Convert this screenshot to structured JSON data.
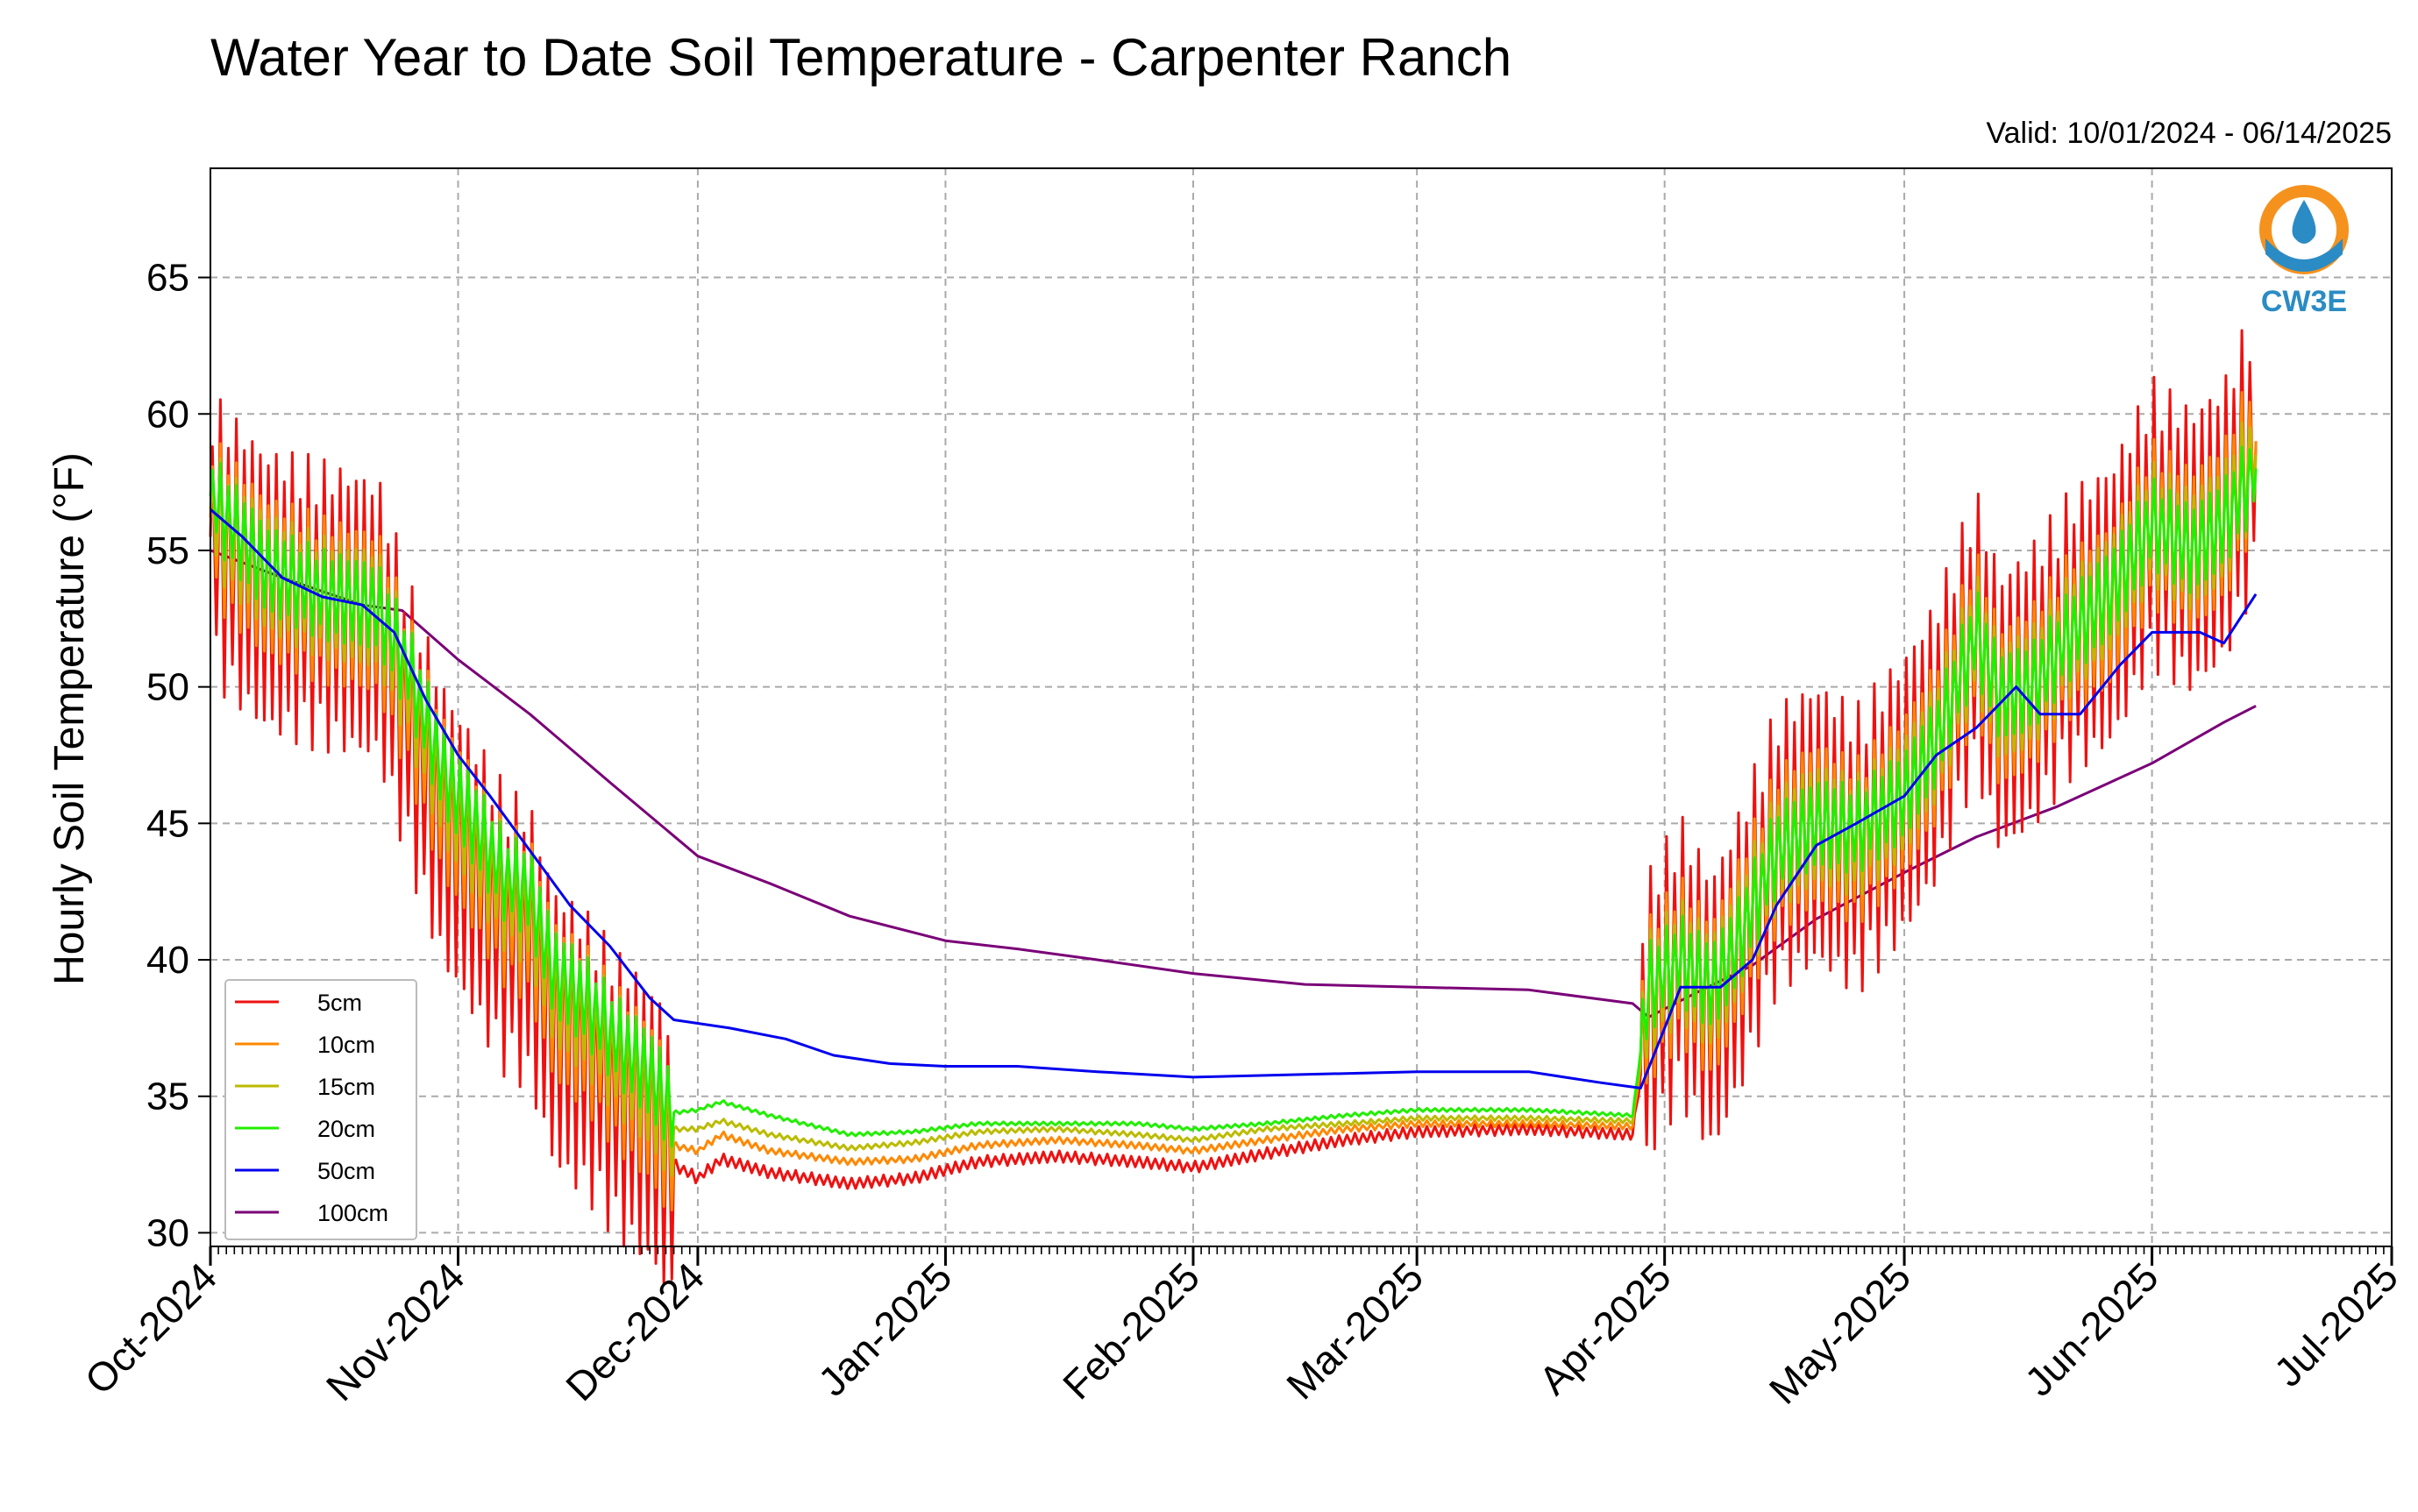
{
  "chart_data": {
    "type": "line",
    "title": "Water Year to Date Soil Temperature - Carpenter Ranch",
    "subtitle": "Valid: 10/01/2024 - 06/14/2025",
    "ylabel": "Hourly Soil Temperature (°F)",
    "xlabel": "",
    "xlim": [
      "2024-10-01",
      "2025-07-01"
    ],
    "ylim": [
      29.5,
      69
    ],
    "yticks": [
      30,
      35,
      40,
      45,
      50,
      55,
      60,
      65
    ],
    "xticks": [
      {
        "date": "2024-10-01",
        "label": "Oct-2024"
      },
      {
        "date": "2024-11-01",
        "label": "Nov-2024"
      },
      {
        "date": "2024-12-01",
        "label": "Dec-2024"
      },
      {
        "date": "2025-01-01",
        "label": "Jan-2025"
      },
      {
        "date": "2025-02-01",
        "label": "Feb-2025"
      },
      {
        "date": "2025-03-01",
        "label": "Mar-2025"
      },
      {
        "date": "2025-04-01",
        "label": "Apr-2025"
      },
      {
        "date": "2025-05-01",
        "label": "May-2025"
      },
      {
        "date": "2025-06-01",
        "label": "Jun-2025"
      },
      {
        "date": "2025-07-01",
        "label": "Jul-2025"
      }
    ],
    "grid": true,
    "legend_position": "lower-left",
    "logo_text": "CW3E",
    "series": [
      {
        "name": "5cm",
        "color": "#ee1111",
        "points": [
          [
            "2024-10-01",
            55.5
          ],
          [
            "2024-10-08",
            53.5
          ],
          [
            "2024-10-15",
            53
          ],
          [
            "2024-10-22",
            52.5
          ],
          [
            "2024-10-26",
            48.5
          ],
          [
            "2024-10-30",
            45
          ],
          [
            "2024-11-03",
            43
          ],
          [
            "2024-11-07",
            41
          ],
          [
            "2024-11-10",
            40.5
          ],
          [
            "2024-11-13",
            37.5
          ],
          [
            "2024-11-17",
            36.5
          ],
          [
            "2024-11-21",
            35
          ],
          [
            "2024-11-25",
            34
          ],
          [
            "2024-11-28",
            32.5
          ],
          [
            "2024-12-01",
            32
          ],
          [
            "2024-12-04",
            32.7
          ],
          [
            "2024-12-10",
            32.2
          ],
          [
            "2024-12-20",
            31.8
          ],
          [
            "2024-12-28",
            32
          ],
          [
            "2025-01-05",
            32.6
          ],
          [
            "2025-01-15",
            32.8
          ],
          [
            "2025-01-25",
            32.6
          ],
          [
            "2025-02-01",
            32.4
          ],
          [
            "2025-02-10",
            32.9
          ],
          [
            "2025-02-20",
            33.4
          ],
          [
            "2025-03-01",
            33.7
          ],
          [
            "2025-03-15",
            33.8
          ],
          [
            "2025-03-28",
            33.6
          ],
          [
            "2025-03-30",
            38
          ],
          [
            "2025-04-03",
            40
          ],
          [
            "2025-04-07",
            38
          ],
          [
            "2025-04-10",
            40
          ],
          [
            "2025-04-15",
            44
          ],
          [
            "2025-04-20",
            45
          ],
          [
            "2025-04-25",
            44
          ],
          [
            "2025-05-01",
            46
          ],
          [
            "2025-05-05",
            48
          ],
          [
            "2025-05-10",
            52
          ],
          [
            "2025-05-13",
            49
          ],
          [
            "2025-05-17",
            50
          ],
          [
            "2025-05-22",
            52
          ],
          [
            "2025-05-27",
            53
          ],
          [
            "2025-06-01",
            56
          ],
          [
            "2025-06-06",
            55
          ],
          [
            "2025-06-10",
            56
          ],
          [
            "2025-06-14",
            59
          ]
        ]
      },
      {
        "name": "10cm",
        "color": "#ff8800",
        "points": [
          [
            "2024-10-01",
            56.2
          ],
          [
            "2024-10-08",
            54
          ],
          [
            "2024-10-15",
            53.2
          ],
          [
            "2024-10-22",
            52.7
          ],
          [
            "2024-10-26",
            49.5
          ],
          [
            "2024-10-30",
            46
          ],
          [
            "2024-11-03",
            44
          ],
          [
            "2024-11-07",
            42
          ],
          [
            "2024-11-10",
            41.5
          ],
          [
            "2024-11-13",
            38.5
          ],
          [
            "2024-11-17",
            37.5
          ],
          [
            "2024-11-21",
            36
          ],
          [
            "2024-11-25",
            34.8
          ],
          [
            "2024-11-28",
            33.2
          ],
          [
            "2024-12-01",
            33
          ],
          [
            "2024-12-04",
            33.6
          ],
          [
            "2024-12-10",
            33
          ],
          [
            "2024-12-20",
            32.6
          ],
          [
            "2024-12-28",
            32.7
          ],
          [
            "2025-01-05",
            33.2
          ],
          [
            "2025-01-15",
            33.4
          ],
          [
            "2025-01-25",
            33.2
          ],
          [
            "2025-02-01",
            33
          ],
          [
            "2025-02-10",
            33.4
          ],
          [
            "2025-02-20",
            33.8
          ],
          [
            "2025-03-01",
            34
          ],
          [
            "2025-03-15",
            34
          ],
          [
            "2025-03-28",
            33.9
          ],
          [
            "2025-03-30",
            38.5
          ],
          [
            "2025-04-03",
            40
          ],
          [
            "2025-04-07",
            38.5
          ],
          [
            "2025-04-10",
            40.5
          ],
          [
            "2025-04-15",
            44
          ],
          [
            "2025-04-20",
            45
          ],
          [
            "2025-04-25",
            44.3
          ],
          [
            "2025-05-01",
            46
          ],
          [
            "2025-05-05",
            48
          ],
          [
            "2025-05-10",
            52
          ],
          [
            "2025-05-13",
            49.2
          ],
          [
            "2025-05-17",
            50
          ],
          [
            "2025-05-22",
            52
          ],
          [
            "2025-05-27",
            53
          ],
          [
            "2025-06-01",
            56
          ],
          [
            "2025-06-06",
            55
          ],
          [
            "2025-06-10",
            56
          ],
          [
            "2025-06-14",
            59
          ]
        ]
      },
      {
        "name": "15cm",
        "color": "#bbbb00",
        "points": [
          [
            "2024-10-01",
            56.5
          ],
          [
            "2024-10-08",
            54.2
          ],
          [
            "2024-10-15",
            53.3
          ],
          [
            "2024-10-22",
            52.8
          ],
          [
            "2024-10-26",
            50
          ],
          [
            "2024-10-30",
            46.5
          ],
          [
            "2024-11-03",
            44.5
          ],
          [
            "2024-11-07",
            42.5
          ],
          [
            "2024-11-10",
            42
          ],
          [
            "2024-11-13",
            39
          ],
          [
            "2024-11-17",
            38
          ],
          [
            "2024-11-21",
            36.5
          ],
          [
            "2024-11-25",
            35.3
          ],
          [
            "2024-11-28",
            33.8
          ],
          [
            "2024-12-01",
            33.8
          ],
          [
            "2024-12-04",
            34.1
          ],
          [
            "2024-12-10",
            33.6
          ],
          [
            "2024-12-20",
            33.1
          ],
          [
            "2024-12-28",
            33.3
          ],
          [
            "2025-01-05",
            33.7
          ],
          [
            "2025-01-15",
            33.8
          ],
          [
            "2025-01-25",
            33.6
          ],
          [
            "2025-02-01",
            33.4
          ],
          [
            "2025-02-10",
            33.8
          ],
          [
            "2025-02-20",
            34
          ],
          [
            "2025-03-01",
            34.2
          ],
          [
            "2025-03-15",
            34.2
          ],
          [
            "2025-03-28",
            34.1
          ],
          [
            "2025-03-30",
            38.8
          ],
          [
            "2025-04-03",
            40
          ],
          [
            "2025-04-07",
            38.8
          ],
          [
            "2025-04-10",
            40.5
          ],
          [
            "2025-04-15",
            44
          ],
          [
            "2025-04-20",
            45
          ],
          [
            "2025-04-25",
            44.5
          ],
          [
            "2025-05-01",
            46
          ],
          [
            "2025-05-05",
            48
          ],
          [
            "2025-05-10",
            52
          ],
          [
            "2025-05-13",
            49.4
          ],
          [
            "2025-05-17",
            50
          ],
          [
            "2025-05-22",
            52
          ],
          [
            "2025-05-27",
            53.5
          ],
          [
            "2025-06-01",
            56
          ],
          [
            "2025-06-06",
            55
          ],
          [
            "2025-06-10",
            56
          ],
          [
            "2025-06-14",
            58.5
          ]
        ]
      },
      {
        "name": "20cm",
        "color": "#22ee00",
        "points": [
          [
            "2024-10-01",
            57
          ],
          [
            "2024-10-08",
            54.3
          ],
          [
            "2024-10-15",
            53.4
          ],
          [
            "2024-10-22",
            52.9
          ],
          [
            "2024-10-26",
            50.5
          ],
          [
            "2024-10-30",
            47
          ],
          [
            "2024-11-03",
            45
          ],
          [
            "2024-11-07",
            43
          ],
          [
            "2024-11-10",
            42.5
          ],
          [
            "2024-11-13",
            39.5
          ],
          [
            "2024-11-17",
            38.5
          ],
          [
            "2024-11-21",
            37
          ],
          [
            "2024-11-25",
            35.8
          ],
          [
            "2024-11-28",
            34.4
          ],
          [
            "2024-12-01",
            34.5
          ],
          [
            "2024-12-04",
            34.8
          ],
          [
            "2024-12-10",
            34.3
          ],
          [
            "2024-12-20",
            33.6
          ],
          [
            "2024-12-28",
            33.7
          ],
          [
            "2025-01-05",
            34
          ],
          [
            "2025-01-15",
            34
          ],
          [
            "2025-01-25",
            34
          ],
          [
            "2025-02-01",
            33.8
          ],
          [
            "2025-02-10",
            34
          ],
          [
            "2025-02-20",
            34.3
          ],
          [
            "2025-03-01",
            34.5
          ],
          [
            "2025-03-15",
            34.5
          ],
          [
            "2025-03-28",
            34.3
          ],
          [
            "2025-03-30",
            39
          ],
          [
            "2025-04-03",
            40
          ],
          [
            "2025-04-07",
            39
          ],
          [
            "2025-04-10",
            40.5
          ],
          [
            "2025-04-15",
            44
          ],
          [
            "2025-04-20",
            45
          ],
          [
            "2025-04-25",
            44.8
          ],
          [
            "2025-05-01",
            46
          ],
          [
            "2025-05-05",
            48
          ],
          [
            "2025-05-10",
            52
          ],
          [
            "2025-05-13",
            49.6
          ],
          [
            "2025-05-17",
            50
          ],
          [
            "2025-05-22",
            52
          ],
          [
            "2025-05-27",
            53.5
          ],
          [
            "2025-06-01",
            56
          ],
          [
            "2025-06-06",
            55
          ],
          [
            "2025-06-10",
            56
          ],
          [
            "2025-06-14",
            58
          ]
        ]
      },
      {
        "name": "50cm",
        "color": "#0000ee",
        "points": [
          [
            "2024-10-01",
            56.5
          ],
          [
            "2024-10-05",
            55.5
          ],
          [
            "2024-10-10",
            54
          ],
          [
            "2024-10-15",
            53.3
          ],
          [
            "2024-10-20",
            53
          ],
          [
            "2024-10-24",
            52
          ],
          [
            "2024-10-28",
            49.5
          ],
          [
            "2024-11-01",
            47.5
          ],
          [
            "2024-11-05",
            46
          ],
          [
            "2024-11-10",
            44
          ],
          [
            "2024-11-15",
            42
          ],
          [
            "2024-11-20",
            40.5
          ],
          [
            "2024-11-25",
            38.6
          ],
          [
            "2024-11-28",
            37.8
          ],
          [
            "2024-12-05",
            37.5
          ],
          [
            "2024-12-12",
            37.1
          ],
          [
            "2024-12-18",
            36.5
          ],
          [
            "2024-12-25",
            36.2
          ],
          [
            "2025-01-01",
            36.1
          ],
          [
            "2025-01-10",
            36.1
          ],
          [
            "2025-01-20",
            35.9
          ],
          [
            "2025-02-01",
            35.7
          ],
          [
            "2025-02-15",
            35.8
          ],
          [
            "2025-03-01",
            35.9
          ],
          [
            "2025-03-15",
            35.9
          ],
          [
            "2025-03-24",
            35.5
          ],
          [
            "2025-03-29",
            35.3
          ],
          [
            "2025-04-01",
            37.5
          ],
          [
            "2025-04-03",
            39
          ],
          [
            "2025-04-08",
            39
          ],
          [
            "2025-04-12",
            40
          ],
          [
            "2025-04-15",
            42
          ],
          [
            "2025-04-20",
            44.2
          ],
          [
            "2025-04-25",
            45
          ],
          [
            "2025-05-01",
            46
          ],
          [
            "2025-05-05",
            47.5
          ],
          [
            "2025-05-10",
            48.5
          ],
          [
            "2025-05-15",
            50
          ],
          [
            "2025-05-18",
            49
          ],
          [
            "2025-05-23",
            49
          ],
          [
            "2025-05-28",
            50.8
          ],
          [
            "2025-06-01",
            52
          ],
          [
            "2025-06-07",
            52
          ],
          [
            "2025-06-10",
            51.6
          ],
          [
            "2025-06-14",
            53.4
          ]
        ]
      },
      {
        "name": "100cm",
        "color": "#7a0077",
        "points": [
          [
            "2024-10-01",
            55
          ],
          [
            "2024-10-10",
            54
          ],
          [
            "2024-10-20",
            53
          ],
          [
            "2024-10-25",
            52.8
          ],
          [
            "2024-11-01",
            51
          ],
          [
            "2024-11-10",
            49
          ],
          [
            "2024-11-20",
            46.5
          ],
          [
            "2024-12-01",
            43.8
          ],
          [
            "2024-12-10",
            42.8
          ],
          [
            "2024-12-20",
            41.6
          ],
          [
            "2025-01-01",
            40.7
          ],
          [
            "2025-01-10",
            40.4
          ],
          [
            "2025-01-20",
            40
          ],
          [
            "2025-02-01",
            39.5
          ],
          [
            "2025-02-15",
            39.1
          ],
          [
            "2025-03-01",
            39
          ],
          [
            "2025-03-15",
            38.9
          ],
          [
            "2025-03-28",
            38.4
          ],
          [
            "2025-03-30",
            37.9
          ],
          [
            "2025-04-05",
            38.8
          ],
          [
            "2025-04-12",
            39.8
          ],
          [
            "2025-04-20",
            41.5
          ],
          [
            "2025-05-01",
            43.2
          ],
          [
            "2025-05-10",
            44.5
          ],
          [
            "2025-05-20",
            45.6
          ],
          [
            "2025-06-01",
            47.2
          ],
          [
            "2025-06-10",
            48.7
          ],
          [
            "2025-06-14",
            49.3
          ]
        ]
      }
    ]
  }
}
